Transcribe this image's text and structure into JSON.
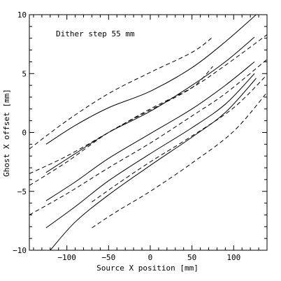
{
  "chart_data": {
    "type": "line",
    "title": "",
    "xlabel": "Source X position [mm]",
    "ylabel": "Ghost X offset [mm]",
    "xlim": [
      -145,
      140
    ],
    "ylim": [
      -10,
      10
    ],
    "x_ticks": [
      -100,
      -50,
      0,
      50,
      100
    ],
    "x_tick_labels": [
      "−100",
      "−50",
      "0",
      "50",
      "100"
    ],
    "y_ticks": [
      -10,
      -5,
      0,
      5,
      10
    ],
    "y_tick_labels": [
      "−10",
      "−5",
      "0",
      "5",
      "10"
    ],
    "grid": false,
    "legend": "none",
    "annotation": "Dither step 55 mm",
    "series": [
      {
        "style": "solid",
        "x": [
          -125,
          -90,
          -50,
          0,
          50,
          90,
          125
        ],
        "y": [
          -5.8,
          -4.2,
          -2.2,
          -0.1,
          2.0,
          4.0,
          6.0
        ]
      },
      {
        "style": "solid",
        "x": [
          -125,
          -90,
          -50,
          0,
          50,
          90,
          125
        ],
        "y": [
          -8.1,
          -6.3,
          -4.1,
          -1.8,
          0.4,
          2.4,
          5.0
        ]
      },
      {
        "style": "solid",
        "x": [
          -125,
          -90,
          -50,
          0,
          50,
          90,
          125
        ],
        "y": [
          -3.4,
          -1.8,
          0.0,
          1.8,
          4.0,
          6.0,
          8.1
        ]
      },
      {
        "style": "solid",
        "x": [
          -120,
          -90,
          -50,
          0,
          50,
          90,
          127
        ],
        "y": [
          -10.0,
          -7.6,
          -5.3,
          -2.8,
          -0.4,
          1.7,
          4.6
        ]
      },
      {
        "style": "solid",
        "x": [
          -125,
          -90,
          -50,
          0,
          50,
          90,
          127
        ],
        "y": [
          -1.0,
          0.6,
          2.1,
          3.5,
          5.5,
          7.7,
          10.0
        ]
      },
      {
        "style": "dashed",
        "x": [
          -145,
          -100,
          -50,
          0,
          50,
          90,
          140
        ],
        "y": [
          -3.5,
          -2.0,
          0.0,
          2.0,
          3.8,
          5.7,
          8.3
        ]
      },
      {
        "style": "dashed",
        "x": [
          -145,
          -100,
          -50,
          0,
          50,
          90,
          140
        ],
        "y": [
          -7.0,
          -5.2,
          -3.0,
          -0.9,
          1.4,
          3.3,
          6.2
        ]
      },
      {
        "style": "dashed",
        "x": [
          -145,
          -100,
          -50,
          0,
          50,
          75
        ],
        "y": [
          -1.4,
          1.0,
          3.3,
          5.1,
          6.8,
          8.1
        ]
      },
      {
        "style": "dashed",
        "x": [
          -145,
          -100,
          -50,
          0,
          50,
          75
        ],
        "y": [
          -4.5,
          -2.5,
          0.0,
          1.9,
          3.8,
          5.6
        ]
      },
      {
        "style": "dashed",
        "x": [
          -70,
          -40,
          0,
          50,
          100,
          140
        ],
        "y": [
          -5.9,
          -4.4,
          -2.5,
          -0.3,
          2.1,
          4.9
        ]
      },
      {
        "style": "dashed",
        "x": [
          -70,
          -40,
          0,
          50,
          100,
          140
        ],
        "y": [
          -8.1,
          -6.7,
          -5.0,
          -2.6,
          0.1,
          3.4
        ]
      }
    ]
  }
}
